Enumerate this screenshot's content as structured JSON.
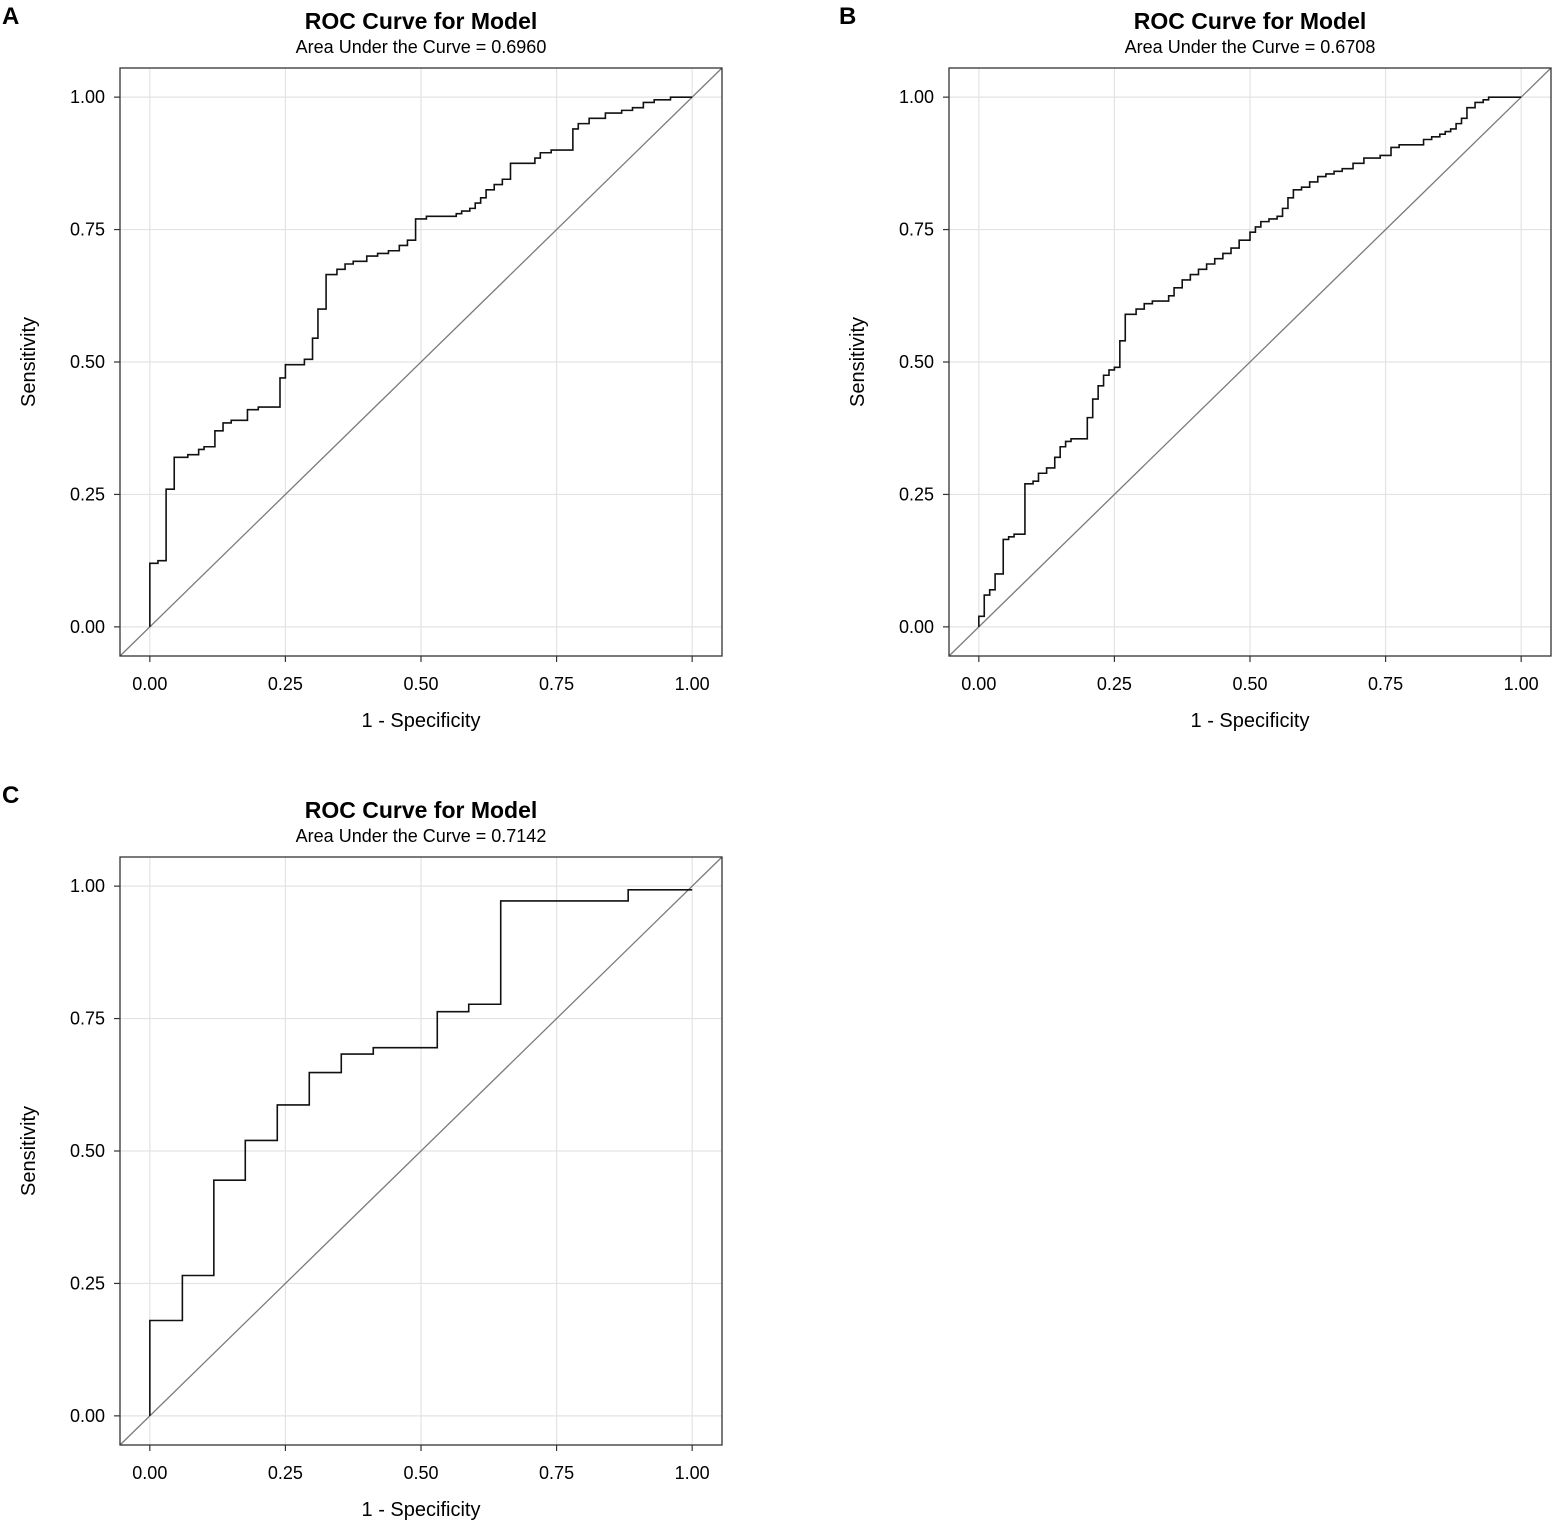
{
  "chart_data": [
    {
      "panel": "A",
      "type": "line",
      "title": "ROC Curve for Model",
      "subtitle": "Area Under the Curve = 0.6960",
      "xlabel": "1 - Specificity",
      "ylabel": "Sensitivity",
      "xlim": [
        -0.055,
        1.055
      ],
      "ylim": [
        -0.055,
        1.055
      ],
      "ticks": [
        "0.00",
        "0.25",
        "0.50",
        "0.75",
        "1.00"
      ],
      "tick_values": [
        0,
        0.25,
        0.5,
        0.75,
        1
      ],
      "grid": true,
      "diagonal": true,
      "series": [
        {
          "name": "ROC",
          "points": [
            [
              0,
              0
            ],
            [
              0,
              0.12
            ],
            [
              0.015,
              0.12
            ],
            [
              0.015,
              0.125
            ],
            [
              0.03,
              0.125
            ],
            [
              0.03,
              0.26
            ],
            [
              0.045,
              0.26
            ],
            [
              0.045,
              0.32
            ],
            [
              0.07,
              0.32
            ],
            [
              0.07,
              0.325
            ],
            [
              0.09,
              0.325
            ],
            [
              0.09,
              0.335
            ],
            [
              0.1,
              0.335
            ],
            [
              0.1,
              0.34
            ],
            [
              0.12,
              0.34
            ],
            [
              0.12,
              0.37
            ],
            [
              0.135,
              0.37
            ],
            [
              0.135,
              0.385
            ],
            [
              0.15,
              0.385
            ],
            [
              0.15,
              0.39
            ],
            [
              0.18,
              0.39
            ],
            [
              0.18,
              0.41
            ],
            [
              0.2,
              0.41
            ],
            [
              0.2,
              0.415
            ],
            [
              0.24,
              0.415
            ],
            [
              0.24,
              0.47
            ],
            [
              0.25,
              0.47
            ],
            [
              0.25,
              0.495
            ],
            [
              0.285,
              0.495
            ],
            [
              0.285,
              0.505
            ],
            [
              0.3,
              0.505
            ],
            [
              0.3,
              0.545
            ],
            [
              0.31,
              0.545
            ],
            [
              0.31,
              0.6
            ],
            [
              0.325,
              0.6
            ],
            [
              0.325,
              0.665
            ],
            [
              0.345,
              0.665
            ],
            [
              0.345,
              0.675
            ],
            [
              0.36,
              0.675
            ],
            [
              0.36,
              0.685
            ],
            [
              0.375,
              0.685
            ],
            [
              0.375,
              0.69
            ],
            [
              0.4,
              0.69
            ],
            [
              0.4,
              0.7
            ],
            [
              0.42,
              0.7
            ],
            [
              0.42,
              0.705
            ],
            [
              0.44,
              0.705
            ],
            [
              0.44,
              0.71
            ],
            [
              0.46,
              0.71
            ],
            [
              0.46,
              0.72
            ],
            [
              0.475,
              0.72
            ],
            [
              0.475,
              0.73
            ],
            [
              0.49,
              0.73
            ],
            [
              0.49,
              0.77
            ],
            [
              0.51,
              0.77
            ],
            [
              0.51,
              0.775
            ],
            [
              0.565,
              0.775
            ],
            [
              0.565,
              0.78
            ],
            [
              0.575,
              0.78
            ],
            [
              0.575,
              0.785
            ],
            [
              0.59,
              0.785
            ],
            [
              0.59,
              0.79
            ],
            [
              0.6,
              0.79
            ],
            [
              0.6,
              0.8
            ],
            [
              0.61,
              0.8
            ],
            [
              0.61,
              0.81
            ],
            [
              0.62,
              0.81
            ],
            [
              0.62,
              0.825
            ],
            [
              0.635,
              0.825
            ],
            [
              0.635,
              0.835
            ],
            [
              0.65,
              0.835
            ],
            [
              0.65,
              0.845
            ],
            [
              0.665,
              0.845
            ],
            [
              0.665,
              0.875
            ],
            [
              0.71,
              0.875
            ],
            [
              0.71,
              0.885
            ],
            [
              0.72,
              0.885
            ],
            [
              0.72,
              0.895
            ],
            [
              0.74,
              0.895
            ],
            [
              0.74,
              0.9
            ],
            [
              0.78,
              0.9
            ],
            [
              0.78,
              0.94
            ],
            [
              0.79,
              0.94
            ],
            [
              0.79,
              0.95
            ],
            [
              0.81,
              0.95
            ],
            [
              0.81,
              0.96
            ],
            [
              0.84,
              0.96
            ],
            [
              0.84,
              0.97
            ],
            [
              0.87,
              0.97
            ],
            [
              0.87,
              0.975
            ],
            [
              0.89,
              0.975
            ],
            [
              0.89,
              0.98
            ],
            [
              0.91,
              0.98
            ],
            [
              0.91,
              0.99
            ],
            [
              0.93,
              0.99
            ],
            [
              0.93,
              0.995
            ],
            [
              0.96,
              0.995
            ],
            [
              0.96,
              1
            ],
            [
              1,
              1
            ]
          ]
        }
      ]
    },
    {
      "panel": "B",
      "type": "line",
      "title": "ROC Curve for Model",
      "subtitle": "Area Under the Curve = 0.6708",
      "xlabel": "1 - Specificity",
      "ylabel": "Sensitivity",
      "xlim": [
        -0.055,
        1.055
      ],
      "ylim": [
        -0.055,
        1.055
      ],
      "ticks": [
        "0.00",
        "0.25",
        "0.50",
        "0.75",
        "1.00"
      ],
      "tick_values": [
        0,
        0.25,
        0.5,
        0.75,
        1
      ],
      "grid": true,
      "diagonal": true,
      "series": [
        {
          "name": "ROC",
          "points": [
            [
              0,
              0
            ],
            [
              0,
              0.02
            ],
            [
              0.01,
              0.02
            ],
            [
              0.01,
              0.06
            ],
            [
              0.02,
              0.06
            ],
            [
              0.02,
              0.07
            ],
            [
              0.03,
              0.07
            ],
            [
              0.03,
              0.1
            ],
            [
              0.045,
              0.1
            ],
            [
              0.045,
              0.165
            ],
            [
              0.055,
              0.165
            ],
            [
              0.055,
              0.17
            ],
            [
              0.065,
              0.17
            ],
            [
              0.065,
              0.175
            ],
            [
              0.085,
              0.175
            ],
            [
              0.085,
              0.27
            ],
            [
              0.1,
              0.27
            ],
            [
              0.1,
              0.275
            ],
            [
              0.11,
              0.275
            ],
            [
              0.11,
              0.29
            ],
            [
              0.125,
              0.29
            ],
            [
              0.125,
              0.3
            ],
            [
              0.14,
              0.3
            ],
            [
              0.14,
              0.32
            ],
            [
              0.15,
              0.32
            ],
            [
              0.15,
              0.34
            ],
            [
              0.16,
              0.34
            ],
            [
              0.16,
              0.35
            ],
            [
              0.17,
              0.35
            ],
            [
              0.17,
              0.355
            ],
            [
              0.2,
              0.355
            ],
            [
              0.2,
              0.395
            ],
            [
              0.21,
              0.395
            ],
            [
              0.21,
              0.43
            ],
            [
              0.22,
              0.43
            ],
            [
              0.22,
              0.455
            ],
            [
              0.23,
              0.455
            ],
            [
              0.23,
              0.475
            ],
            [
              0.24,
              0.475
            ],
            [
              0.24,
              0.485
            ],
            [
              0.25,
              0.485
            ],
            [
              0.25,
              0.49
            ],
            [
              0.26,
              0.49
            ],
            [
              0.26,
              0.54
            ],
            [
              0.27,
              0.54
            ],
            [
              0.27,
              0.59
            ],
            [
              0.29,
              0.59
            ],
            [
              0.29,
              0.6
            ],
            [
              0.305,
              0.6
            ],
            [
              0.305,
              0.61
            ],
            [
              0.32,
              0.61
            ],
            [
              0.32,
              0.615
            ],
            [
              0.35,
              0.615
            ],
            [
              0.35,
              0.625
            ],
            [
              0.36,
              0.625
            ],
            [
              0.36,
              0.64
            ],
            [
              0.375,
              0.64
            ],
            [
              0.375,
              0.655
            ],
            [
              0.39,
              0.655
            ],
            [
              0.39,
              0.665
            ],
            [
              0.405,
              0.665
            ],
            [
              0.405,
              0.675
            ],
            [
              0.42,
              0.675
            ],
            [
              0.42,
              0.685
            ],
            [
              0.435,
              0.685
            ],
            [
              0.435,
              0.695
            ],
            [
              0.45,
              0.695
            ],
            [
              0.45,
              0.705
            ],
            [
              0.465,
              0.705
            ],
            [
              0.465,
              0.715
            ],
            [
              0.48,
              0.715
            ],
            [
              0.48,
              0.73
            ],
            [
              0.5,
              0.73
            ],
            [
              0.5,
              0.745
            ],
            [
              0.51,
              0.745
            ],
            [
              0.51,
              0.755
            ],
            [
              0.52,
              0.755
            ],
            [
              0.52,
              0.765
            ],
            [
              0.535,
              0.765
            ],
            [
              0.535,
              0.77
            ],
            [
              0.55,
              0.77
            ],
            [
              0.55,
              0.775
            ],
            [
              0.56,
              0.775
            ],
            [
              0.56,
              0.79
            ],
            [
              0.57,
              0.79
            ],
            [
              0.57,
              0.81
            ],
            [
              0.58,
              0.81
            ],
            [
              0.58,
              0.825
            ],
            [
              0.595,
              0.825
            ],
            [
              0.595,
              0.83
            ],
            [
              0.61,
              0.83
            ],
            [
              0.61,
              0.84
            ],
            [
              0.625,
              0.84
            ],
            [
              0.625,
              0.85
            ],
            [
              0.64,
              0.85
            ],
            [
              0.64,
              0.855
            ],
            [
              0.655,
              0.855
            ],
            [
              0.655,
              0.86
            ],
            [
              0.67,
              0.86
            ],
            [
              0.67,
              0.865
            ],
            [
              0.69,
              0.865
            ],
            [
              0.69,
              0.875
            ],
            [
              0.71,
              0.875
            ],
            [
              0.71,
              0.885
            ],
            [
              0.74,
              0.885
            ],
            [
              0.74,
              0.89
            ],
            [
              0.76,
              0.89
            ],
            [
              0.76,
              0.905
            ],
            [
              0.775,
              0.905
            ],
            [
              0.775,
              0.91
            ],
            [
              0.82,
              0.91
            ],
            [
              0.82,
              0.92
            ],
            [
              0.835,
              0.92
            ],
            [
              0.835,
              0.925
            ],
            [
              0.85,
              0.925
            ],
            [
              0.85,
              0.93
            ],
            [
              0.86,
              0.93
            ],
            [
              0.86,
              0.935
            ],
            [
              0.87,
              0.935
            ],
            [
              0.87,
              0.94
            ],
            [
              0.88,
              0.94
            ],
            [
              0.88,
              0.95
            ],
            [
              0.89,
              0.95
            ],
            [
              0.89,
              0.96
            ],
            [
              0.9,
              0.96
            ],
            [
              0.9,
              0.98
            ],
            [
              0.915,
              0.98
            ],
            [
              0.915,
              0.99
            ],
            [
              0.93,
              0.99
            ],
            [
              0.93,
              0.995
            ],
            [
              0.94,
              0.995
            ],
            [
              0.94,
              1
            ],
            [
              1,
              1
            ]
          ]
        }
      ]
    },
    {
      "panel": "C",
      "type": "line",
      "title": "ROC Curve for Model",
      "subtitle": "Area Under the Curve = 0.7142",
      "xlabel": "1 - Specificity",
      "ylabel": "Sensitivity",
      "xlim": [
        -0.055,
        1.055
      ],
      "ylim": [
        -0.055,
        1.055
      ],
      "ticks": [
        "0.00",
        "0.25",
        "0.50",
        "0.75",
        "1.00"
      ],
      "tick_values": [
        0,
        0.25,
        0.5,
        0.75,
        1
      ],
      "grid": true,
      "diagonal": true,
      "series": [
        {
          "name": "ROC",
          "points": [
            [
              0,
              0
            ],
            [
              0,
              0.18
            ],
            [
              0.06,
              0.18
            ],
            [
              0.06,
              0.265
            ],
            [
              0.118,
              0.265
            ],
            [
              0.118,
              0.445
            ],
            [
              0.176,
              0.445
            ],
            [
              0.176,
              0.52
            ],
            [
              0.235,
              0.52
            ],
            [
              0.235,
              0.587
            ],
            [
              0.294,
              0.587
            ],
            [
              0.294,
              0.648
            ],
            [
              0.353,
              0.648
            ],
            [
              0.353,
              0.683
            ],
            [
              0.412,
              0.683
            ],
            [
              0.412,
              0.695
            ],
            [
              0.53,
              0.695
            ],
            [
              0.53,
              0.763
            ],
            [
              0.588,
              0.763
            ],
            [
              0.588,
              0.777
            ],
            [
              0.647,
              0.777
            ],
            [
              0.647,
              0.972
            ],
            [
              0.882,
              0.972
            ],
            [
              0.882,
              0.993
            ],
            [
              1,
              0.993
            ]
          ]
        }
      ]
    }
  ]
}
